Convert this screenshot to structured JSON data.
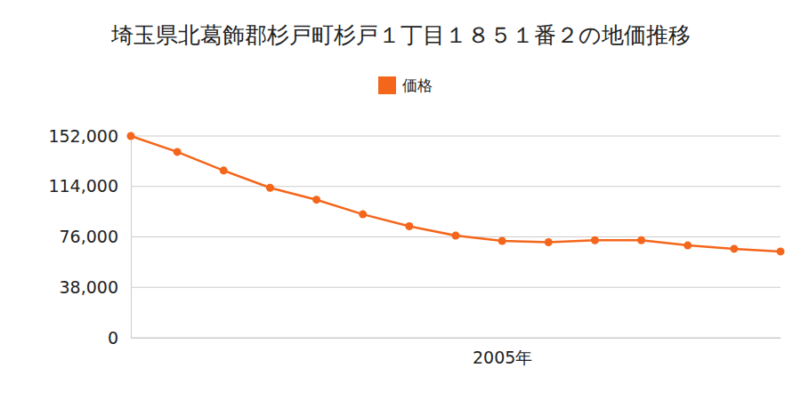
{
  "chart_data": {
    "type": "line",
    "title": "埼玉県北葛飾郡杉戸町杉戸１丁目１８５１番２の地価推移",
    "categories": [
      null,
      null,
      null,
      null,
      null,
      null,
      null,
      null,
      "2005年",
      null,
      null,
      null,
      null,
      null,
      null
    ],
    "series": [
      {
        "name": "価格",
        "color": "#f4661b",
        "marker": "circle",
        "values": [
          152000,
          140000,
          126000,
          113000,
          104000,
          93000,
          84000,
          77000,
          73000,
          72000,
          73500,
          73500,
          69600,
          67000,
          65000
        ]
      }
    ],
    "ylim": [
      0,
      152000
    ],
    "yticks": [
      0,
      {
        "value": 38000,
        "label": "38,000"
      },
      {
        "value": 76000,
        "label": "76,000"
      },
      {
        "value": 114000,
        "label": "114,000"
      },
      {
        "value": 152000,
        "label": "152,000"
      }
    ],
    "grid": true,
    "legend": "top"
  }
}
